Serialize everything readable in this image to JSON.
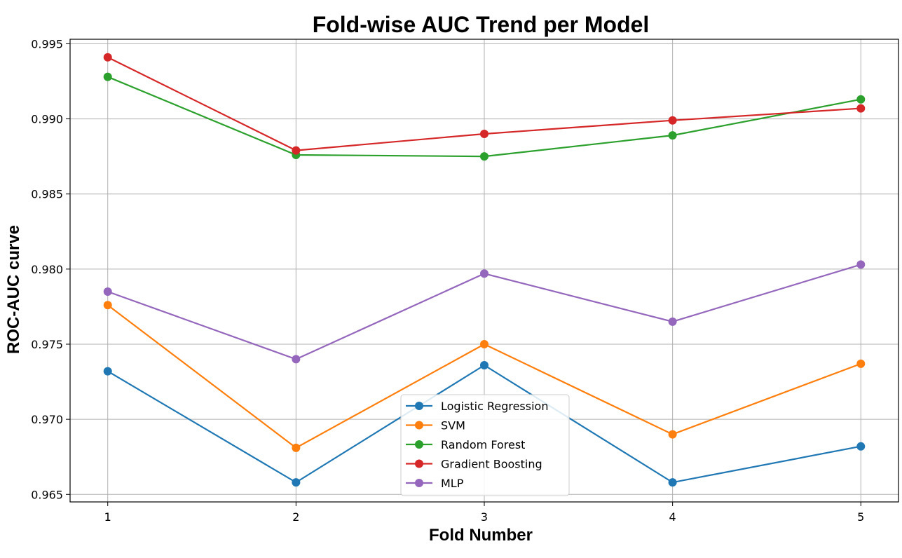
{
  "chart_data": {
    "type": "line",
    "title": "Fold-wise AUC Trend per Model",
    "xlabel": "Fold Number",
    "ylabel": "ROC-AUC curve",
    "x": [
      1,
      2,
      3,
      4,
      5
    ],
    "x_tick_labels": [
      "1",
      "2",
      "3",
      "4",
      "5"
    ],
    "ylim": [
      0.9645,
      0.9953
    ],
    "y_ticks": [
      0.965,
      0.97,
      0.975,
      0.98,
      0.985,
      0.99,
      0.995
    ],
    "y_tick_labels": [
      "0.965",
      "0.970",
      "0.975",
      "0.980",
      "0.985",
      "0.990",
      "0.995"
    ],
    "grid": true,
    "legend_position": "lower-center",
    "series": [
      {
        "name": "Logistic Regression",
        "color": "#1f77b4",
        "values": [
          0.9732,
          0.9658,
          0.9736,
          0.9658,
          0.9682
        ]
      },
      {
        "name": "SVM",
        "color": "#ff7f0e",
        "values": [
          0.9776,
          0.9681,
          0.975,
          0.969,
          0.9737
        ]
      },
      {
        "name": "Random Forest",
        "color": "#2ca02c",
        "values": [
          0.9928,
          0.9876,
          0.9875,
          0.9889,
          0.9913
        ]
      },
      {
        "name": "Gradient Boosting",
        "color": "#d62728",
        "values": [
          0.9941,
          0.9879,
          0.989,
          0.9899,
          0.9907
        ]
      },
      {
        "name": "MLP",
        "color": "#9467bd",
        "values": [
          0.9785,
          0.974,
          0.9797,
          0.9765,
          0.9803
        ]
      }
    ]
  }
}
